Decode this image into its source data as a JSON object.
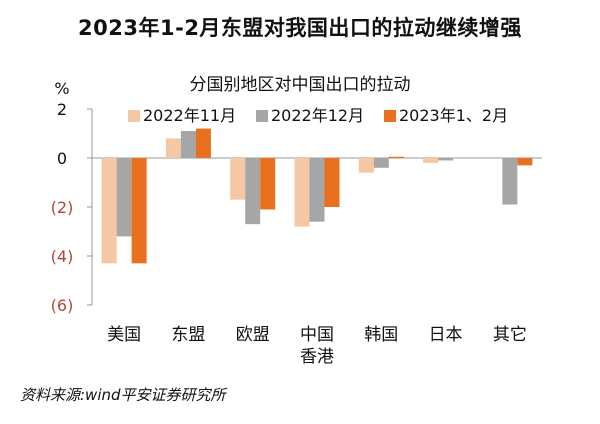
{
  "title": "2023年1-2月东盟对我国出口的拉动继续增强",
  "source": "资料来源:wind平安证券研究所",
  "chart_data": {
    "type": "bar",
    "title": "分国别地区对中国出口的拉动",
    "ylabel": "%",
    "ylim": [
      -6,
      2
    ],
    "yticks": [
      2,
      0,
      -2,
      -4,
      -6
    ],
    "ytick_labels": [
      "2",
      "0",
      "(2)",
      "(4)",
      "(6)"
    ],
    "negative_tick_color": "#b5463a",
    "categories": [
      "美国",
      "东盟",
      "欧盟",
      "中国香港",
      "韩国",
      "日本",
      "其它"
    ],
    "category_lines": [
      [
        "美国"
      ],
      [
        "东盟"
      ],
      [
        "欧盟"
      ],
      [
        "中国",
        "香港"
      ],
      [
        "韩国"
      ],
      [
        "日本"
      ],
      [
        "其它"
      ]
    ],
    "series": [
      {
        "name": "2022年11月",
        "color": "#f4c7a5",
        "values": [
          -4.3,
          0.8,
          -1.7,
          -2.8,
          -0.6,
          -0.2,
          0.0
        ]
      },
      {
        "name": "2022年12月",
        "color": "#a6a6a6",
        "values": [
          -3.2,
          1.1,
          -2.7,
          -2.6,
          -0.4,
          -0.1,
          -1.9
        ]
      },
      {
        "name": "2023年1、2月",
        "color": "#e8701f",
        "values": [
          -4.3,
          1.2,
          -2.1,
          -2.0,
          0.05,
          0.0,
          -0.3
        ]
      }
    ],
    "legend": "top"
  }
}
